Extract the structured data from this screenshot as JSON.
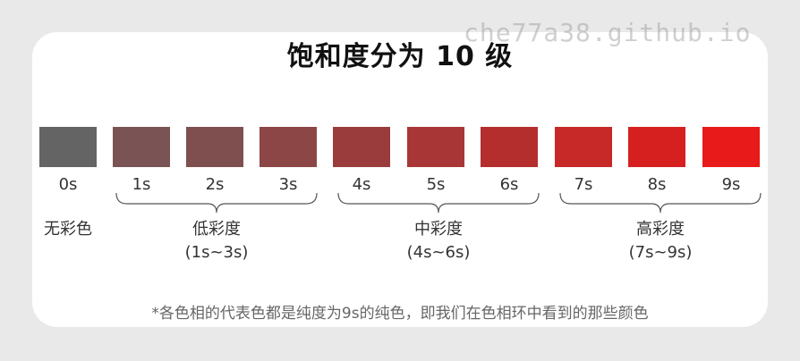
{
  "title": "饱和度分为 10 级",
  "watermark": "che77a38.github.io",
  "levels": [
    {
      "label": "0s",
      "color": "#646464"
    },
    {
      "label": "1s",
      "color": "#7a5454"
    },
    {
      "label": "2s",
      "color": "#7f4f4f"
    },
    {
      "label": "3s",
      "color": "#8c4646"
    },
    {
      "label": "4s",
      "color": "#9a3c3c"
    },
    {
      "label": "5s",
      "color": "#a83636"
    },
    {
      "label": "6s",
      "color": "#b52e2e"
    },
    {
      "label": "7s",
      "color": "#c72828"
    },
    {
      "label": "8s",
      "color": "#d62020"
    },
    {
      "label": "9s",
      "color": "#e81a1a"
    }
  ],
  "achromatic_label": "无彩色",
  "groups": [
    {
      "name": "低彩度",
      "range": "(1s~3s)"
    },
    {
      "name": "中彩度",
      "range": "(4s~6s)"
    },
    {
      "name": "高彩度",
      "range": "(7s~9s)"
    }
  ],
  "footnote": "*各色相的代表色都是纯度为9s的纯色，即我们在色相环中看到的那些颜色"
}
